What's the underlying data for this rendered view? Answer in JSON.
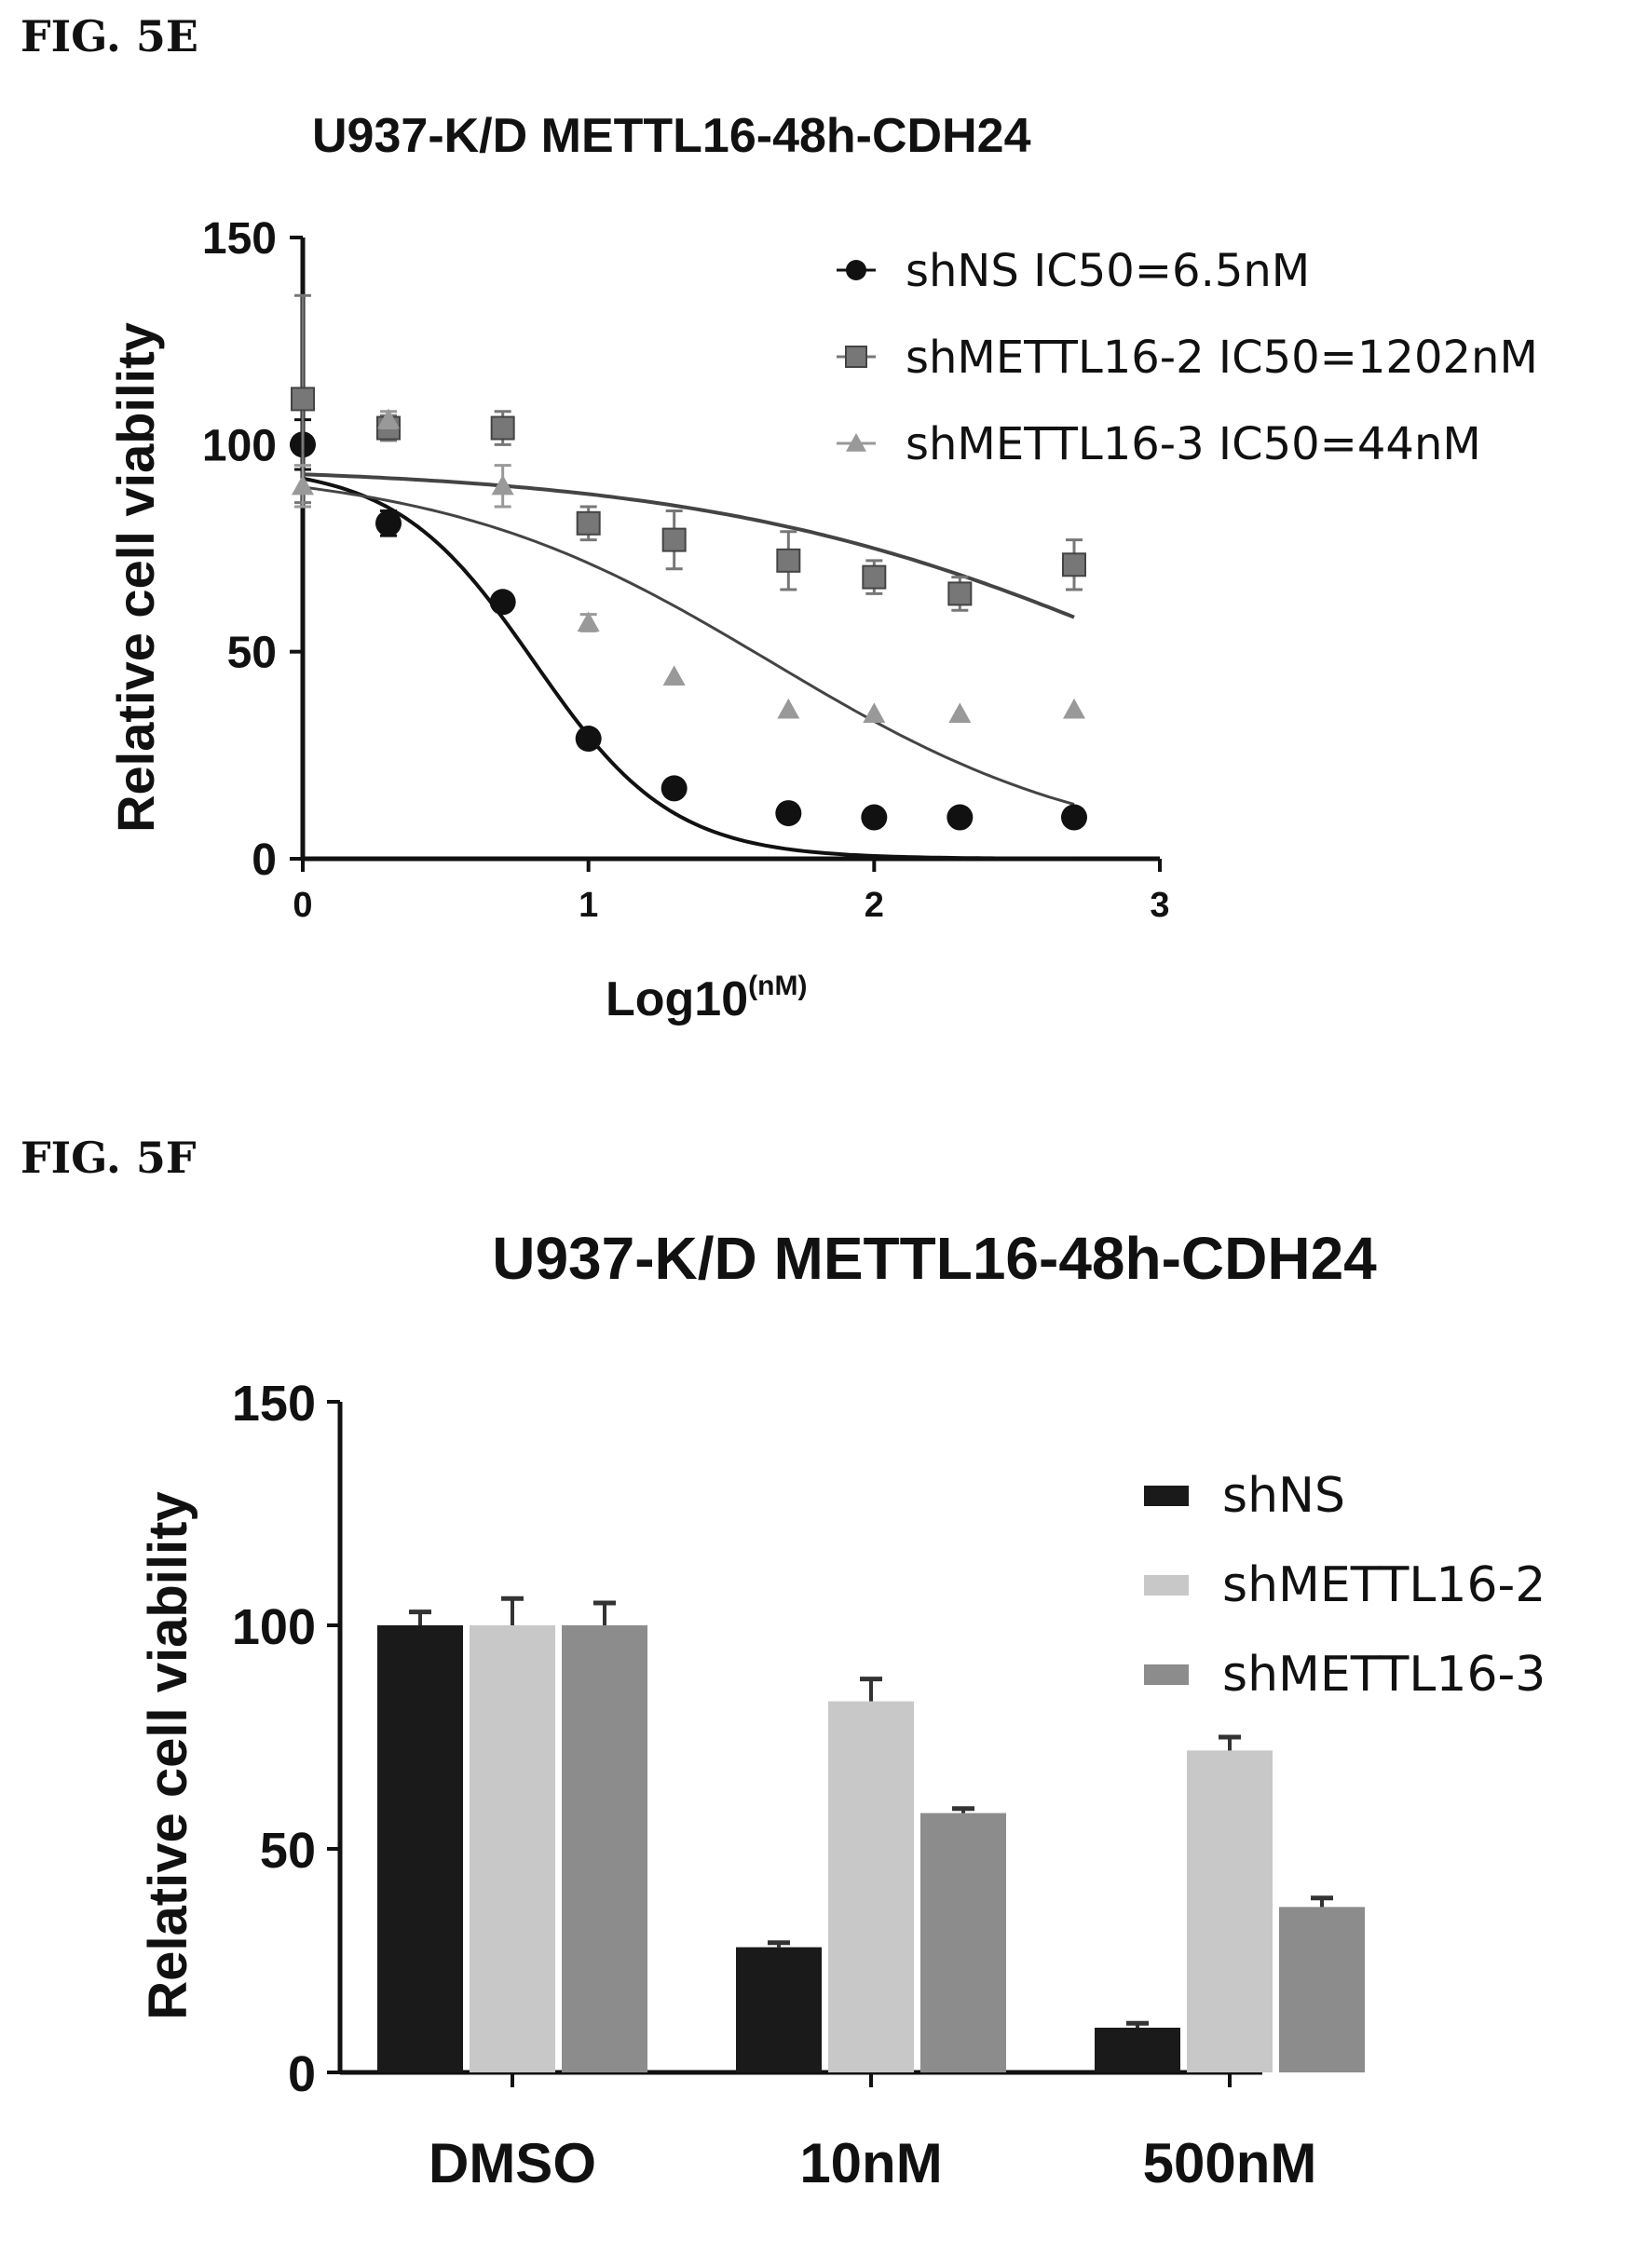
{
  "figures": {
    "e_label": "FIG. 5E",
    "f_label": "FIG. 5F"
  },
  "chart_data": [
    {
      "type": "scatter",
      "title": "U937-K/D METTL16-48h-CDH24",
      "xlabel": "Log10",
      "xlabel_sup": "(nM)",
      "ylabel": "Relative cell viability",
      "xlim": [
        0,
        3
      ],
      "ylim": [
        0,
        150
      ],
      "x_ticks": [
        0,
        1,
        2,
        3
      ],
      "y_ticks": [
        0,
        50,
        100,
        150
      ],
      "legend_position": "top-right",
      "series": [
        {
          "name": "shNS IC50=6.5nM",
          "marker": "circle",
          "color": "#111111",
          "x": [
            0,
            0.3,
            0.7,
            1.0,
            1.3,
            1.7,
            2.0,
            2.3,
            2.7
          ],
          "y": [
            100,
            81,
            62,
            29,
            17,
            11,
            10,
            10,
            10
          ],
          "err": [
            6,
            3,
            2,
            2,
            1,
            1,
            1,
            1,
            1
          ],
          "curve": {
            "top": 95,
            "bottom": 0,
            "log_ic50": 0.81,
            "hill": 1.8
          }
        },
        {
          "name": "shMETTL16-2 IC50=1202nM",
          "marker": "square",
          "color": "#777777",
          "x": [
            0,
            0.3,
            0.7,
            1.0,
            1.3,
            1.7,
            2.0,
            2.3,
            2.7
          ],
          "y": [
            111,
            104,
            104,
            81,
            77,
            72,
            68,
            64,
            71
          ],
          "err": [
            25,
            3,
            4,
            4,
            7,
            7,
            4,
            4,
            6
          ],
          "curve": {
            "top": 95,
            "bottom": 0,
            "log_ic50": 3.08,
            "hill": 0.53
          }
        },
        {
          "name": "shMETTL16-3 IC50=44nM",
          "marker": "triangle",
          "color": "#999999",
          "x": [
            0,
            0.3,
            0.7,
            1.0,
            1.3,
            1.7,
            2.0,
            2.3,
            2.7
          ],
          "y": [
            90,
            106,
            90,
            57,
            44,
            36,
            35,
            35,
            36
          ],
          "err": [
            5,
            2,
            5,
            2,
            1,
            1,
            1,
            1,
            1
          ],
          "curve": {
            "top": 95,
            "bottom": 0,
            "log_ic50": 1.64,
            "hill": 0.75
          }
        }
      ]
    },
    {
      "type": "bar",
      "title": "U937-K/D METTL16-48h-CDH24",
      "xlabel": "",
      "ylabel": "Relative cell viability",
      "categories": [
        "DMSO",
        "10nM",
        "500nM"
      ],
      "ylim": [
        0,
        150
      ],
      "y_ticks": [
        0,
        50,
        100,
        150
      ],
      "legend_position": "top-right",
      "series": [
        {
          "name": "shNS",
          "color": "#1a1a1a",
          "values": [
            100,
            28,
            10
          ],
          "err": [
            3,
            1,
            1
          ]
        },
        {
          "name": "shMETTL16-2",
          "color": "#c8c8c8",
          "values": [
            100,
            83,
            72
          ],
          "err": [
            6,
            5,
            3
          ]
        },
        {
          "name": "shMETTL16-3",
          "color": "#8c8c8c",
          "values": [
            100,
            58,
            37
          ],
          "err": [
            5,
            1,
            2
          ]
        }
      ]
    }
  ]
}
